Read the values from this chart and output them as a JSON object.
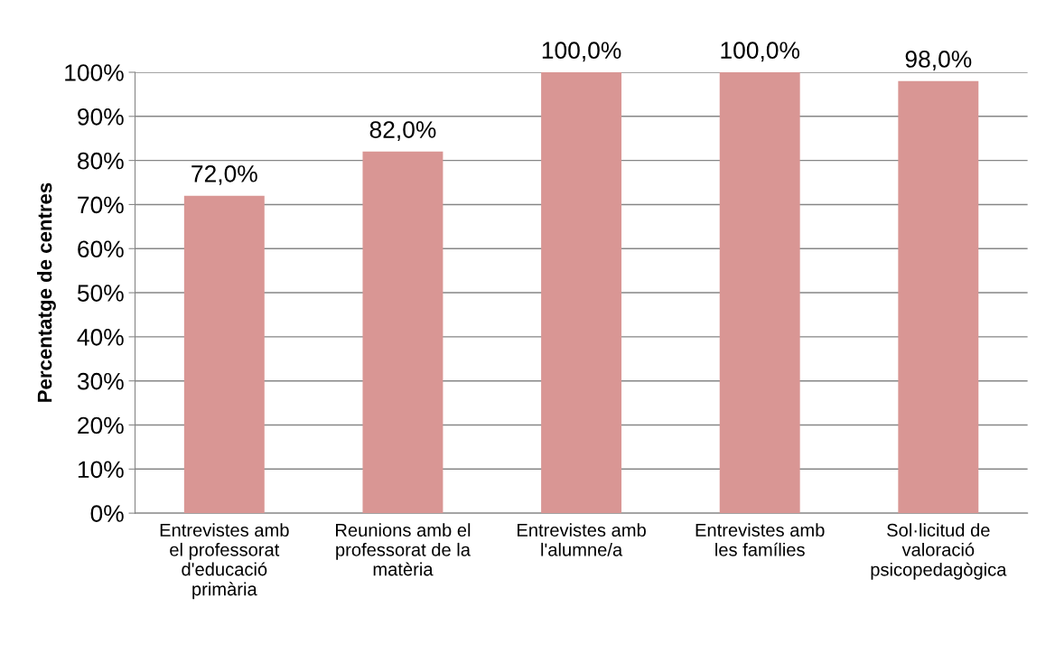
{
  "chart_data": {
    "type": "bar",
    "ylabel": "Percentatge de centres",
    "categories": [
      "Entrevistes amb\nel professorat\nd'educació\nprimària",
      "Reunions amb el\nprofessorat de la\nmatèria",
      "Entrevistes amb\nl'alumne/a",
      "Entrevistes amb\nles famílies",
      "Sol·licitud de\nvaloració\npsicopedagògica"
    ],
    "values": [
      72,
      82,
      100,
      100,
      98
    ],
    "color": "#d99694",
    "value_labels": [
      "72,0%",
      "82,0%",
      "100,0%",
      "100,0%",
      "98,0%"
    ],
    "ylim": [
      0,
      100
    ],
    "yticks": [
      {
        "value": 0,
        "label": "0%"
      },
      {
        "value": 10,
        "label": "10%"
      },
      {
        "value": 20,
        "label": "20%"
      },
      {
        "value": 30,
        "label": "30%"
      },
      {
        "value": 40,
        "label": "40%"
      },
      {
        "value": 50,
        "label": "50%"
      },
      {
        "value": 60,
        "label": "60%"
      },
      {
        "value": 70,
        "label": "70%"
      },
      {
        "value": 80,
        "label": "80%"
      },
      {
        "value": 90,
        "label": "90%"
      },
      {
        "value": 100,
        "label": "100%"
      }
    ],
    "grid": "y",
    "legend": false
  }
}
